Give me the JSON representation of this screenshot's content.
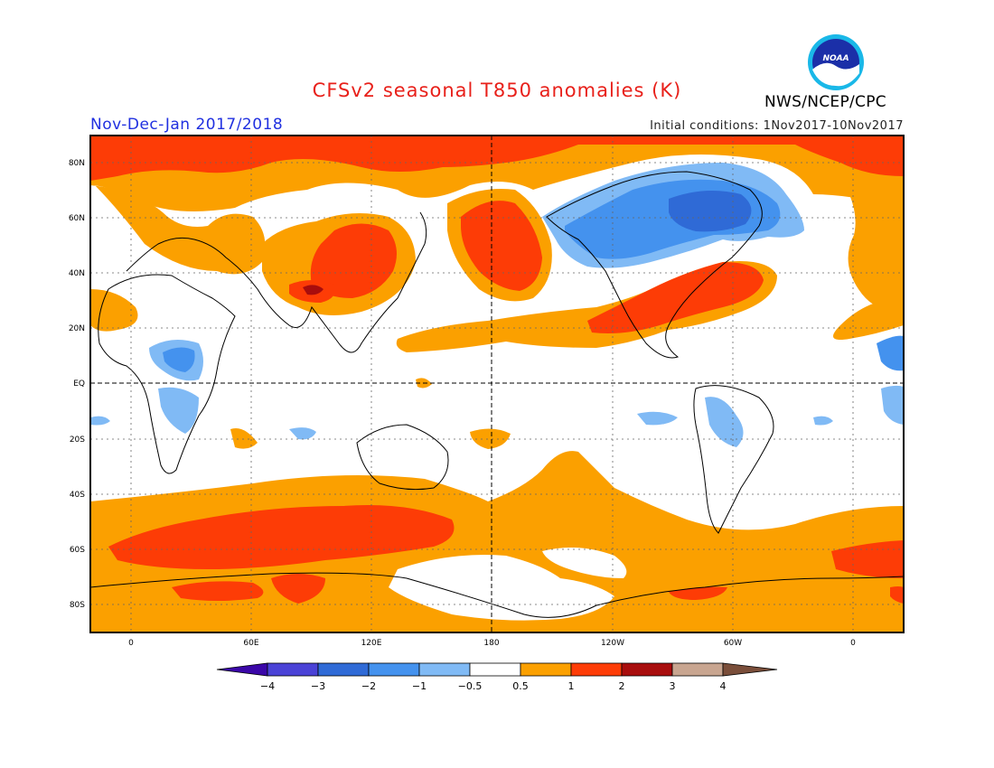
{
  "title": "CFSv2 seasonal T850 anomalies (K)",
  "period": "Nov-Dec-Jan 2017/2018",
  "initial_conditions": "Initial conditions: 1Nov2017-10Nov2017",
  "agency": "NWS/NCEP/CPC",
  "logo_text": "NOAA",
  "logo_icon": "noaa-logo-icon",
  "lat_labels": [
    "80N",
    "60N",
    "40N",
    "20N",
    "EQ",
    "20S",
    "40S",
    "60S",
    "80S"
  ],
  "lon_labels": [
    "0",
    "60E",
    "120E",
    "180",
    "120W",
    "60W",
    "0"
  ],
  "colorbar": {
    "labels": [
      "−4",
      "−3",
      "−2",
      "−1",
      "−0.5",
      "0.5",
      "1",
      "2",
      "3",
      "4"
    ],
    "colors": [
      "#3b07a8",
      "#4a42d6",
      "#2f6ad6",
      "#4492ee",
      "#80baf5",
      "#ffffff",
      "#fba000",
      "#fd3c06",
      "#a80d0d",
      "#c8a590",
      "#7a4e3a"
    ]
  }
}
